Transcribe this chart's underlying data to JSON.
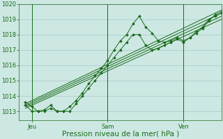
{
  "bg_color": "#cde8e3",
  "grid_color": "#9bbfbc",
  "line_color": "#1a6b1a",
  "ylabel_ticks": [
    1013,
    1014,
    1015,
    1016,
    1017,
    1018,
    1019,
    1020
  ],
  "ylim": [
    1012.4,
    1020.0
  ],
  "xlabel": "Pression niveau de la mer( hPa )",
  "xtick_labels": [
    "Jeu",
    "Sam",
    "Ven"
  ],
  "xtick_positions": [
    8,
    56,
    104
  ],
  "xlim": [
    0,
    128
  ],
  "series": [
    {
      "x": [
        4,
        8,
        12,
        16,
        20,
        24,
        28,
        32,
        36,
        40,
        44,
        48,
        52,
        56,
        60,
        64,
        68,
        72,
        76,
        80,
        84,
        88,
        92,
        96,
        100,
        104,
        108,
        112,
        116,
        120,
        124,
        128
      ],
      "y": [
        1013.6,
        1013.3,
        1013.0,
        1013.1,
        1013.4,
        1013.0,
        1013.0,
        1013.3,
        1013.7,
        1014.2,
        1014.8,
        1015.3,
        1015.8,
        1016.3,
        1017.0,
        1017.6,
        1018.0,
        1018.7,
        1019.2,
        1018.5,
        1018.1,
        1017.6,
        1017.5,
        1017.6,
        1017.8,
        1017.6,
        1017.8,
        1018.1,
        1018.4,
        1018.9,
        1019.3,
        1019.5
      ],
      "has_markers": true
    },
    {
      "x": [
        4,
        128
      ],
      "y": [
        1013.5,
        1019.6
      ],
      "has_markers": false
    },
    {
      "x": [
        4,
        128
      ],
      "y": [
        1013.4,
        1019.4
      ],
      "has_markers": false
    },
    {
      "x": [
        4,
        128
      ],
      "y": [
        1013.3,
        1019.2
      ],
      "has_markers": false
    },
    {
      "x": [
        4,
        128
      ],
      "y": [
        1013.2,
        1019.0
      ],
      "has_markers": false
    },
    {
      "x": [
        4,
        8,
        12,
        16,
        20,
        24,
        28,
        32,
        36,
        40,
        44,
        48,
        52,
        56,
        60,
        64,
        68,
        72,
        76,
        80,
        84,
        88,
        92,
        96,
        100,
        104,
        108,
        112,
        116,
        120,
        124,
        128
      ],
      "y": [
        1013.4,
        1013.0,
        1013.0,
        1013.0,
        1013.2,
        1013.0,
        1013.0,
        1013.0,
        1013.5,
        1014.0,
        1014.5,
        1015.0,
        1015.5,
        1016.0,
        1016.5,
        1017.0,
        1017.5,
        1018.0,
        1018.0,
        1017.3,
        1017.0,
        1017.1,
        1017.3,
        1017.5,
        1017.7,
        1017.5,
        1017.8,
        1018.2,
        1018.5,
        1019.0,
        1019.2,
        1019.4
      ],
      "has_markers": true
    }
  ],
  "vline_positions": [
    8,
    56,
    104
  ],
  "font_size_tick": 6,
  "font_size_xlabel": 7.5
}
